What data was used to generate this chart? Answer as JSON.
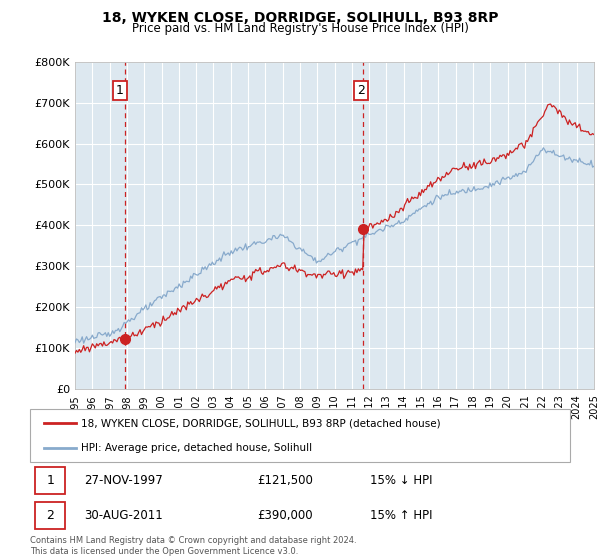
{
  "title": "18, WYKEN CLOSE, DORRIDGE, SOLIHULL, B93 8RP",
  "subtitle": "Price paid vs. HM Land Registry's House Price Index (HPI)",
  "legend_line1": "18, WYKEN CLOSE, DORRIDGE, SOLIHULL, B93 8RP (detached house)",
  "legend_line2": "HPI: Average price, detached house, Solihull",
  "table": [
    {
      "num": "1",
      "date": "27-NOV-1997",
      "price": "£121,500",
      "hpi": "15% ↓ HPI"
    },
    {
      "num": "2",
      "date": "30-AUG-2011",
      "price": "£390,000",
      "hpi": "15% ↑ HPI"
    }
  ],
  "footer": "Contains HM Land Registry data © Crown copyright and database right 2024.\nThis data is licensed under the Open Government Licence v3.0.",
  "sale1_year": 1997.9,
  "sale1_price": 121500,
  "sale2_year": 2011.66,
  "sale2_price": 390000,
  "xmin": 1995,
  "xmax": 2025,
  "ymin": 0,
  "ymax": 800000,
  "yticks": [
    0,
    100000,
    200000,
    300000,
    400000,
    500000,
    600000,
    700000,
    800000
  ],
  "ytick_labels": [
    "£0",
    "£100K",
    "£200K",
    "£300K",
    "£400K",
    "£500K",
    "£600K",
    "£700K",
    "£800K"
  ],
  "xticks": [
    1995,
    1996,
    1997,
    1998,
    1999,
    2000,
    2001,
    2002,
    2003,
    2004,
    2005,
    2006,
    2007,
    2008,
    2009,
    2010,
    2011,
    2012,
    2013,
    2014,
    2015,
    2016,
    2017,
    2018,
    2019,
    2020,
    2021,
    2022,
    2023,
    2024,
    2025
  ],
  "red_line_color": "#cc2222",
  "blue_line_color": "#88aacc",
  "sale_dot_color": "#cc2222",
  "vline_color": "#cc2222",
  "plot_bg": "#dde8f0",
  "grid_color": "#ffffff"
}
